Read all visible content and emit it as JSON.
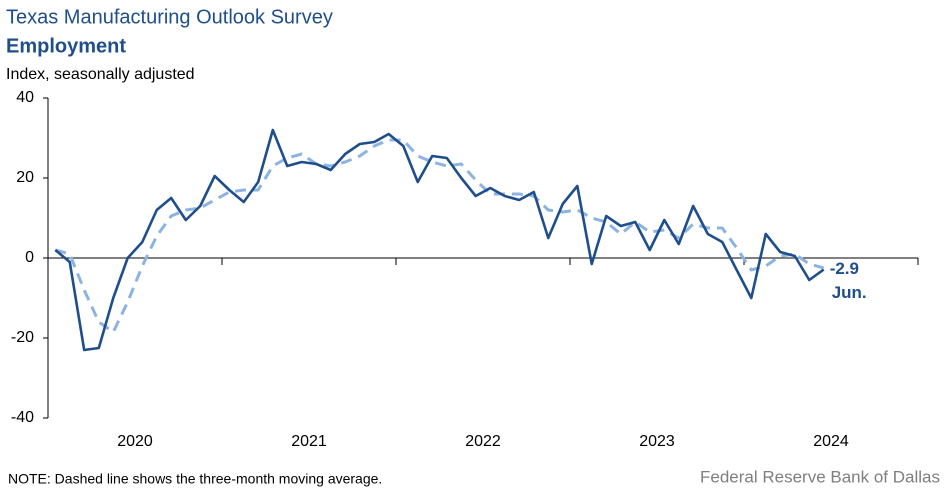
{
  "chart_data": {
    "type": "line",
    "title": "Texas Manufacturing Outlook Survey",
    "subtitle": "Employment",
    "y_label": "Index, seasonally adjusted",
    "note": "NOTE: Dashed line shows the three-month  moving average.",
    "source": "Federal Reserve Bank of Dallas",
    "annotation": "Jun.",
    "x": [
      2020.042,
      2020.125,
      2020.208,
      2020.292,
      2020.375,
      2020.458,
      2020.542,
      2020.625,
      2020.708,
      2020.792,
      2020.875,
      2020.958,
      2021.042,
      2021.125,
      2021.208,
      2021.292,
      2021.375,
      2021.458,
      2021.542,
      2021.625,
      2021.708,
      2021.792,
      2021.875,
      2021.958,
      2022.042,
      2022.125,
      2022.208,
      2022.292,
      2022.375,
      2022.458,
      2022.542,
      2022.625,
      2022.708,
      2022.792,
      2022.875,
      2022.958,
      2023.042,
      2023.125,
      2023.208,
      2023.292,
      2023.375,
      2023.458,
      2023.542,
      2023.625,
      2023.708,
      2023.792,
      2023.875,
      2023.958,
      2024.042,
      2024.125,
      2024.208,
      2024.292,
      2024.375,
      2024.458
    ],
    "series": [
      {
        "name": "Employment",
        "color": "#1f4e8c",
        "dashed": false,
        "values": [
          2,
          -1,
          -23,
          -22.5,
          -10,
          0,
          4,
          12,
          15,
          9.5,
          13,
          20.5,
          17,
          14,
          19,
          32,
          23,
          24,
          23.5,
          22,
          26,
          28.5,
          29,
          31,
          28,
          19,
          25.5,
          25,
          20,
          15.5,
          17.5,
          15.5,
          14.5,
          16.5,
          5,
          13.5,
          18,
          -1.5,
          10.5,
          8,
          9,
          2,
          9.5,
          3.5,
          13,
          6,
          4,
          -3,
          -10,
          6,
          1.5,
          0.5,
          -5.5,
          -2.9
        ]
      },
      {
        "name": "Three-month moving average",
        "color": "#8db3e2",
        "dashed": true,
        "values": [
          2,
          1,
          -8,
          -16,
          -18.5,
          -11,
          -2,
          5.5,
          10.5,
          12,
          12.5,
          14.5,
          16.5,
          17,
          17,
          23,
          25,
          26,
          23.5,
          23,
          24,
          25.5,
          28,
          29.5,
          29.5,
          25.5,
          24,
          23,
          23.5,
          19.5,
          16,
          16,
          16,
          15.5,
          12,
          11.5,
          12,
          10,
          9,
          6,
          9,
          6.5,
          7,
          5,
          8.5,
          7.5,
          7.5,
          2.5,
          -3,
          -2,
          0.5,
          1,
          -1.5,
          -2.5
        ]
      }
    ],
    "xlim": [
      2020,
      2025
    ],
    "xticks": [
      2020,
      2021,
      2022,
      2023,
      2024
    ],
    "ylim": [
      -40,
      40
    ],
    "yticks": [
      -40,
      -20,
      0,
      20,
      40
    ],
    "grid": false
  }
}
